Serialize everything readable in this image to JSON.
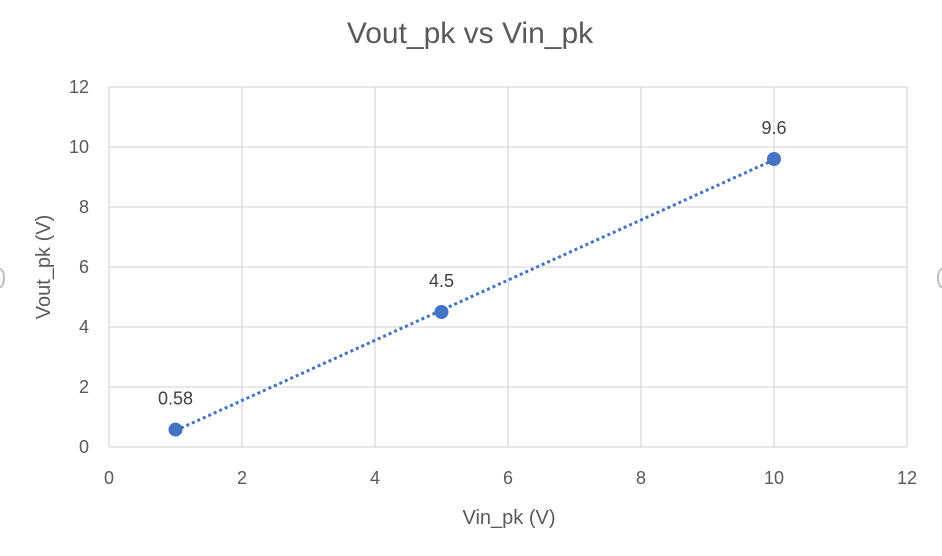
{
  "chart_data": {
    "type": "scatter",
    "title": "Vout_pk vs Vin_pk",
    "xlabel": "Vin_pk (V)",
    "ylabel": "Vout_pk (V)",
    "xlim": [
      0,
      12
    ],
    "ylim": [
      0,
      12
    ],
    "xticks": [
      0,
      2,
      4,
      6,
      8,
      10,
      12
    ],
    "yticks": [
      0,
      2,
      4,
      6,
      8,
      10,
      12
    ],
    "grid": true,
    "legend": "none",
    "series": [
      {
        "x": [
          1,
          5,
          10
        ],
        "y": [
          0.58,
          4.5,
          9.6
        ],
        "data_labels": [
          "0.58",
          "4.5",
          "9.6"
        ],
        "color": "#4472c4",
        "trendline": "dotted"
      }
    ]
  }
}
